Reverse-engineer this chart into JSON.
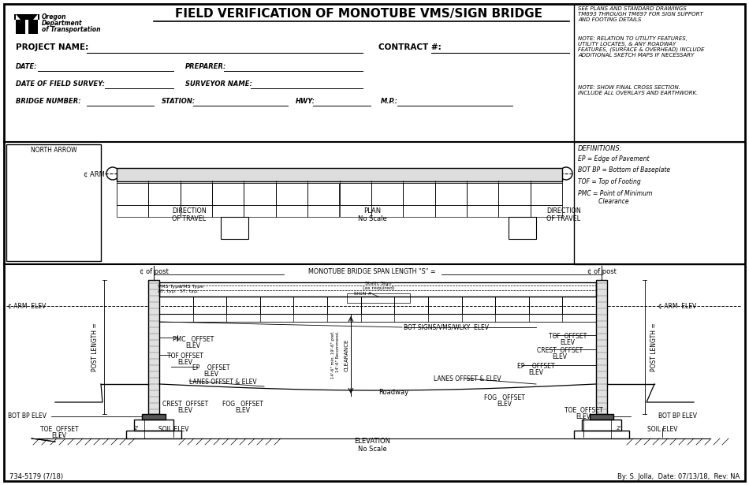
{
  "title": "FIELD VERIFICATION OF MONOTUBE VMS/SIGN BRIDGE",
  "note1": "SEE PLANS AND STANDARD DRAWINGS\nTM693 THROUGH TM697 FOR SIGN SUPPORT\nAND FOOTING DETAILS",
  "note2": "NOTE: RELATION TO UTILITY FEATURES,\nUTILITY LOCATES, & ANY ROADWAY\nFEATURES, (SURFACE & OVERHEAD) INCLUDE\nADDITIONAL SKETCH MAPS IF NECESSARY",
  "note3": "NOTE: SHOW FINAL CROSS SECTION.\nINCLUDE ALL OVERLAYS AND EARTHWORK.",
  "footer_left": "734-5179 (7/18)",
  "footer_right": "By: S. Jolla,  Date: 07/13/18,  Rev: NA",
  "bg_color": "#ffffff"
}
